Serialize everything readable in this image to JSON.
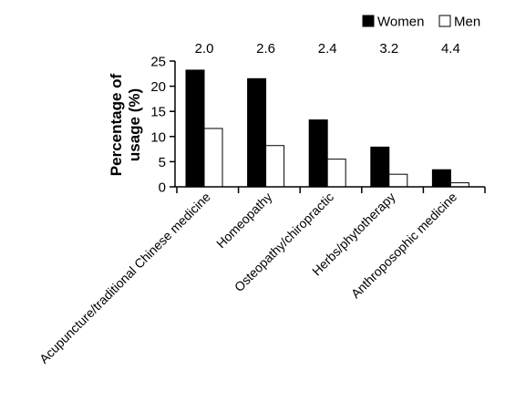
{
  "chart_data": {
    "type": "bar",
    "categories": [
      "Acupuncture/traditional Chinese medicine",
      "Homeopathy",
      "Osteopathy/chiropractic",
      "Herbs/phytotherapy",
      "Anthroposophic medicine"
    ],
    "series": [
      {
        "name": "Women",
        "values": [
          23.2,
          21.5,
          13.3,
          7.9,
          3.4
        ],
        "color": "#000000"
      },
      {
        "name": "Men",
        "values": [
          11.6,
          8.2,
          5.5,
          2.5,
          0.8
        ],
        "color": "#ffffff"
      }
    ],
    "annotations": [
      "2.0",
      "2.6",
      "2.4",
      "3.2",
      "4.4"
    ],
    "ylabel": "Percentage of usage (%)",
    "xlabel": "",
    "ylim": [
      0,
      25
    ],
    "yticks": [
      0,
      5,
      10,
      15,
      20,
      25
    ],
    "grid": false,
    "legend_position": "top-right"
  }
}
